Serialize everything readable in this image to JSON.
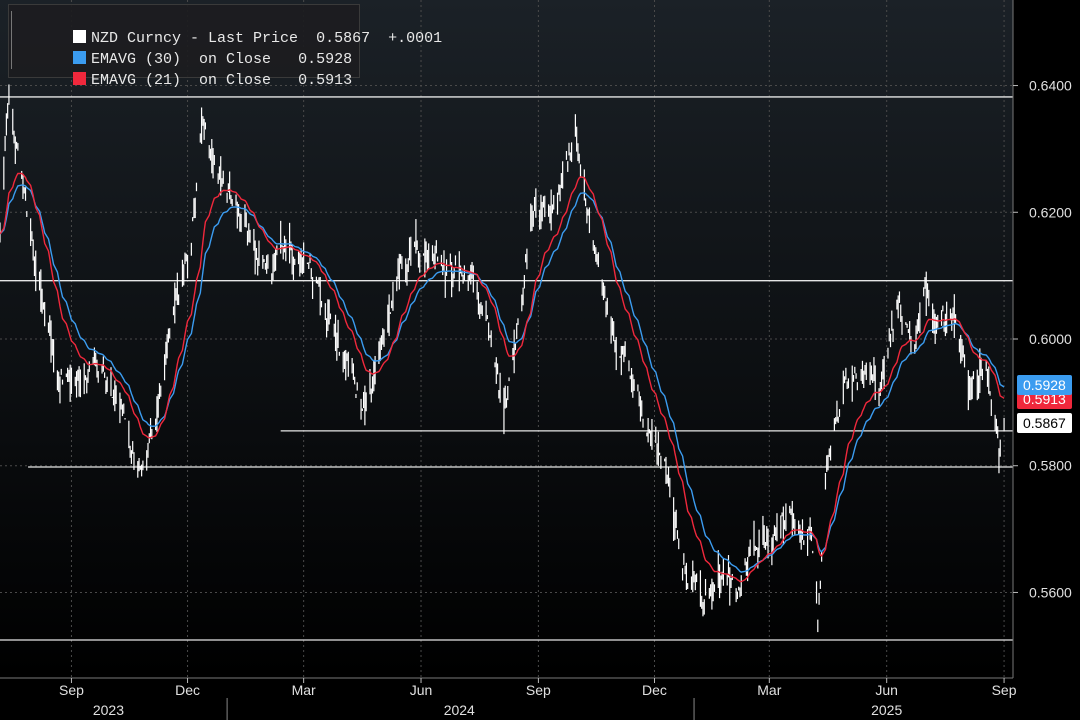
{
  "chart_data": {
    "type": "line",
    "legend": {
      "placement": "top-left",
      "rows": [
        {
          "label": "NZD Curncy - Last Price",
          "value": "0.5867",
          "change": "+.0001",
          "color": "#ffffff"
        },
        {
          "label": "EMAVG (30)  on Close",
          "value": "0.5928",
          "change": "",
          "color": "#3b9cf0"
        },
        {
          "label": "EMAVG (21)  on Close",
          "value": "0.5913",
          "change": "",
          "color": "#f0283c"
        }
      ]
    },
    "y_ticks": [
      "0.6400",
      "0.6200",
      "0.6000",
      "0.5800",
      "0.5600"
    ],
    "ylim": [
      0.5465,
      0.6535
    ],
    "x_months": [
      {
        "label": "Sep",
        "date": "2023-09-01"
      },
      {
        "label": "Dec",
        "date": "2023-12-01"
      },
      {
        "label": "Mar",
        "date": "2024-03-01"
      },
      {
        "label": "Jun",
        "date": "2024-06-01"
      },
      {
        "label": "Sep",
        "date": "2024-09-01"
      },
      {
        "label": "Dec",
        "date": "2024-12-01"
      },
      {
        "label": "Mar",
        "date": "2025-03-01"
      },
      {
        "label": "Jun",
        "date": "2025-06-01"
      },
      {
        "label": "Sep",
        "date": "2025-09-01"
      }
    ],
    "x_years": [
      {
        "label": "2023",
        "date": "2023-09-30"
      },
      {
        "label": "2024",
        "date": "2024-07-01"
      },
      {
        "label": "2025",
        "date": "2025-06-01"
      }
    ],
    "year_dividers": [
      "2024-01-01",
      "2025-01-01"
    ],
    "xlim": [
      "2023-07-07",
      "2025-09-08"
    ],
    "horizontal_levels": [
      {
        "value": 0.6382,
        "from": "2023-07-07",
        "to": "2025-09-08"
      },
      {
        "value": 0.6092,
        "from": "2023-07-07",
        "to": "2025-09-08"
      },
      {
        "value": 0.5855,
        "from": "2024-02-12",
        "to": "2025-09-08"
      },
      {
        "value": 0.5798,
        "from": "2023-07-29",
        "to": "2025-09-08"
      },
      {
        "value": 0.5525,
        "from": "2023-07-07",
        "to": "2025-09-08"
      }
    ],
    "anchors": [
      [
        "2023-07-07",
        0.616
      ],
      [
        "2023-07-14",
        0.638
      ],
      [
        "2023-07-24",
        0.625
      ],
      [
        "2023-08-07",
        0.608
      ],
      [
        "2023-08-21",
        0.595
      ],
      [
        "2023-09-04",
        0.592
      ],
      [
        "2023-09-25",
        0.596
      ],
      [
        "2023-10-09",
        0.589
      ],
      [
        "2023-10-26",
        0.58
      ],
      [
        "2023-11-07",
        0.59
      ],
      [
        "2023-11-21",
        0.605
      ],
      [
        "2023-12-04",
        0.615
      ],
      [
        "2023-12-12",
        0.635
      ],
      [
        "2023-12-22",
        0.628
      ],
      [
        "2024-01-08",
        0.622
      ],
      [
        "2024-01-22",
        0.615
      ],
      [
        "2024-02-05",
        0.61
      ],
      [
        "2024-02-16",
        0.615
      ],
      [
        "2024-02-28",
        0.613
      ],
      [
        "2024-03-11",
        0.61
      ],
      [
        "2024-03-25",
        0.6
      ],
      [
        "2024-04-04",
        0.596
      ],
      [
        "2024-04-17",
        0.588
      ],
      [
        "2024-05-02",
        0.598
      ],
      [
        "2024-05-16",
        0.612
      ],
      [
        "2024-06-03",
        0.614
      ],
      [
        "2024-06-17",
        0.612
      ],
      [
        "2024-07-01",
        0.611
      ],
      [
        "2024-07-12",
        0.608
      ],
      [
        "2024-07-24",
        0.6
      ],
      [
        "2024-08-05",
        0.588
      ],
      [
        "2024-08-16",
        0.603
      ],
      [
        "2024-08-29",
        0.623
      ],
      [
        "2024-09-12",
        0.618
      ],
      [
        "2024-09-30",
        0.633
      ],
      [
        "2024-10-14",
        0.615
      ],
      [
        "2024-10-28",
        0.602
      ],
      [
        "2024-11-11",
        0.595
      ],
      [
        "2024-11-25",
        0.586
      ],
      [
        "2024-12-09",
        0.58
      ],
      [
        "2024-12-23",
        0.565
      ],
      [
        "2025-01-08",
        0.559
      ],
      [
        "2025-01-20",
        0.562
      ],
      [
        "2025-02-03",
        0.56
      ],
      [
        "2025-02-17",
        0.568
      ],
      [
        "2025-03-03",
        0.569
      ],
      [
        "2025-03-14",
        0.573
      ],
      [
        "2025-03-24",
        0.57
      ],
      [
        "2025-04-03",
        0.568
      ],
      [
        "2025-04-08",
        0.555
      ],
      [
        "2025-04-15",
        0.58
      ],
      [
        "2025-04-28",
        0.593
      ],
      [
        "2025-05-12",
        0.595
      ],
      [
        "2025-05-26",
        0.592
      ],
      [
        "2025-06-09",
        0.605
      ],
      [
        "2025-06-23",
        0.6
      ],
      [
        "2025-07-01",
        0.608
      ],
      [
        "2025-07-10",
        0.601
      ],
      [
        "2025-07-24",
        0.604
      ],
      [
        "2025-08-04",
        0.593
      ],
      [
        "2025-08-18",
        0.595
      ],
      [
        "2025-08-28",
        0.583
      ],
      [
        "2025-09-01",
        0.5867
      ]
    ],
    "series": [
      {
        "name": "NZD Curncy - Last Price",
        "color": "#ffffff",
        "style": "daily high-low bars"
      },
      {
        "name": "EMAVG (30)  on Close",
        "color": "#3b9cf0",
        "window": 30
      },
      {
        "name": "EMAVG (21)  on Close",
        "color": "#f0283c",
        "window": 21
      }
    ],
    "last_value_tags": [
      {
        "value": "0.5928",
        "bg": "#3b9cf0",
        "fg": "#ffffff",
        "anchor": 0.5928
      },
      {
        "value": "0.5913",
        "bg": "#f0283c",
        "fg": "#ffffff",
        "anchor": 0.5913
      },
      {
        "value": "0.5867",
        "bg": "#ffffff",
        "fg": "#000000",
        "anchor": 0.5867
      }
    ],
    "grid": true,
    "colors": {
      "background": "#000000",
      "plot_top": "#1b2127",
      "grid": "#4a4a4a",
      "level": "#e6e6e6",
      "axis_text": "#e0e0e0"
    }
  }
}
